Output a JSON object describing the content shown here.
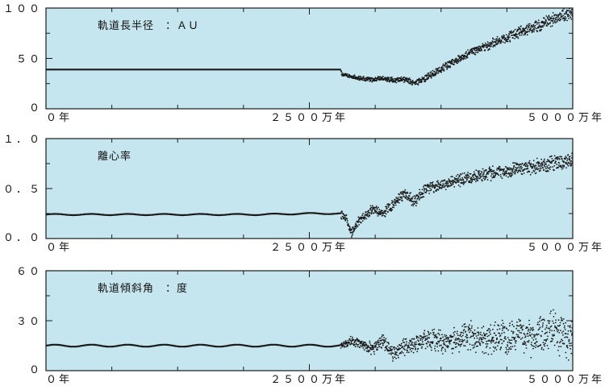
{
  "background": "#ffffff",
  "panel_fill": "#c6e6ef",
  "ink": "#1a1a1a",
  "chart_data": [
    {
      "type": "scatter",
      "title": "軌道長半径　：ＡＵ",
      "xticklabels": [
        "０年",
        "２５００万年",
        "５０００万年"
      ],
      "yticklabels": [
        "１００",
        "５０",
        "０"
      ],
      "xlim": [
        0,
        5000
      ],
      "ylim": [
        0,
        100
      ],
      "grid": false,
      "series": [
        {
          "x": [
            0,
            500,
            1000,
            1500,
            2000,
            2500,
            2800,
            2810,
            2850,
            2900,
            3000,
            3100,
            3200,
            3300,
            3400,
            3500,
            3600,
            3700,
            3800,
            3900,
            4000,
            4100,
            4200,
            4300,
            4400,
            4500,
            4600,
            4700,
            4800,
            4900,
            5000
          ],
          "y": [
            39,
            39,
            39,
            39,
            39,
            39,
            39,
            34,
            33,
            32,
            30,
            29,
            30,
            28,
            29,
            26,
            30,
            36,
            43,
            48,
            54,
            59,
            63,
            67,
            71,
            77,
            80,
            83,
            88,
            92,
            96
          ]
        }
      ]
    },
    {
      "type": "scatter",
      "title": "離心率",
      "xticklabels": [
        "０年",
        "２５００万年",
        "５０００万年"
      ],
      "yticklabels": [
        "１．０",
        "０．５",
        "０．０"
      ],
      "xlim": [
        0,
        5000
      ],
      "ylim": [
        0,
        1
      ],
      "grid": false,
      "series": [
        {
          "x": [
            0,
            500,
            1000,
            1500,
            2000,
            2500,
            2800,
            2850,
            2900,
            2950,
            3000,
            3100,
            3200,
            3300,
            3400,
            3500,
            3600,
            3700,
            3800,
            3900,
            4000,
            4100,
            4200,
            4300,
            4400,
            4500,
            4600,
            4700,
            4800,
            4900,
            5000
          ],
          "y": [
            0.24,
            0.24,
            0.24,
            0.24,
            0.24,
            0.25,
            0.25,
            0.2,
            0.05,
            0.15,
            0.2,
            0.3,
            0.25,
            0.35,
            0.45,
            0.37,
            0.5,
            0.52,
            0.55,
            0.58,
            0.6,
            0.62,
            0.64,
            0.66,
            0.68,
            0.7,
            0.71,
            0.73,
            0.75,
            0.76,
            0.78
          ]
        }
      ]
    },
    {
      "type": "scatter",
      "title": "軌道傾斜角　：度",
      "xticklabels": [
        "０年",
        "２５００万年",
        "５０００万年"
      ],
      "yticklabels": [
        "６０",
        "３０",
        "０"
      ],
      "xlim": [
        0,
        5000
      ],
      "ylim": [
        0,
        60
      ],
      "grid": false,
      "series": [
        {
          "x": [
            0,
            500,
            1000,
            1500,
            2000,
            2500,
            2800,
            2900,
            3000,
            3100,
            3200,
            3300,
            3400,
            3500,
            3600,
            3700,
            3800,
            3900,
            4000,
            4100,
            4200,
            4300,
            4400,
            4500,
            4600,
            4700,
            4800,
            4900,
            5000
          ],
          "y": [
            15,
            15,
            15,
            15,
            15,
            15,
            15,
            18,
            16,
            13,
            18,
            10,
            14,
            16,
            20,
            18,
            17,
            19,
            21,
            20,
            18,
            22,
            20,
            21,
            19,
            22,
            24,
            21,
            20
          ]
        }
      ]
    }
  ]
}
